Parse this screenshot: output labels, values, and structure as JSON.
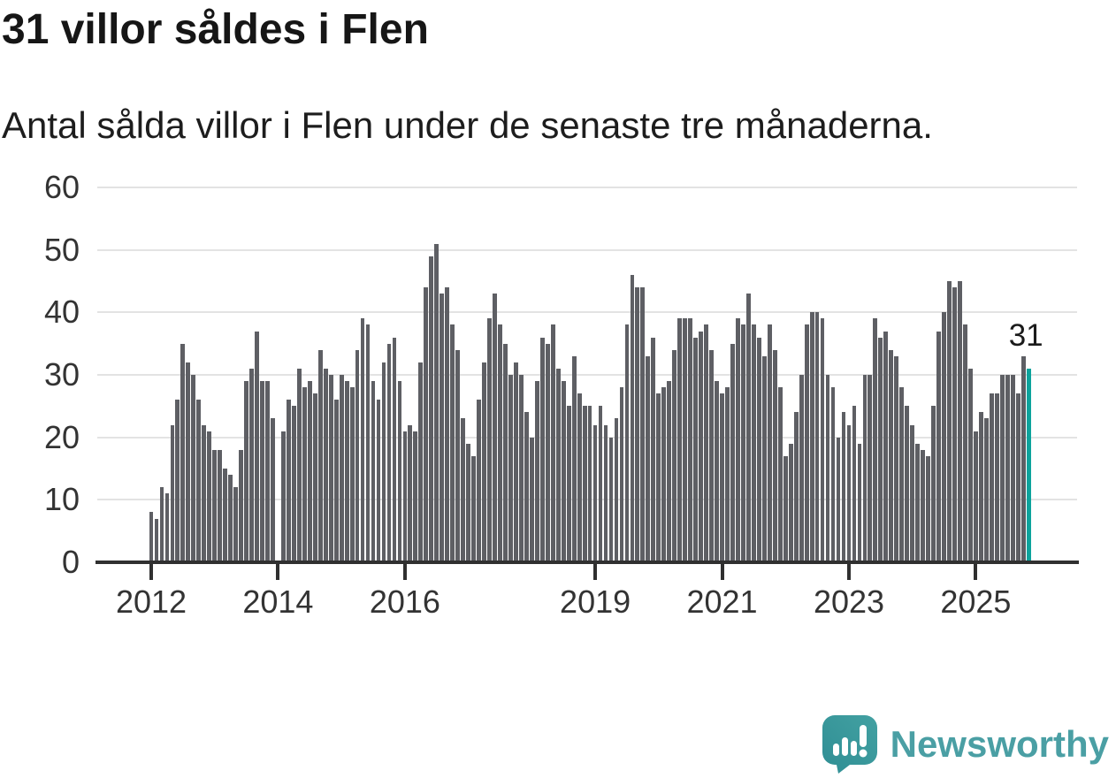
{
  "header": {
    "title": "31 villor såldes i Flen",
    "subtitle": "Antal sålda villor i Flen under de senaste tre månaderna."
  },
  "chart_data": {
    "type": "bar",
    "title": "31 villor såldes i Flen",
    "subtitle": "Antal sålda villor i Flen under de senaste tre månaderna.",
    "x_start_month": "2012-01",
    "x_frequency": "monthly-rolling-3-month-sum",
    "missing_months": [
      "2014-01"
    ],
    "values": [
      8,
      7,
      12,
      11,
      22,
      26,
      35,
      32,
      30,
      26,
      22,
      21,
      18,
      18,
      15,
      14,
      12,
      18,
      29,
      31,
      37,
      29,
      29,
      23,
      0,
      21,
      26,
      25,
      31,
      28,
      29,
      27,
      34,
      31,
      30,
      26,
      30,
      29,
      28,
      34,
      39,
      38,
      29,
      26,
      32,
      35,
      36,
      29,
      21,
      22,
      21,
      32,
      44,
      49,
      51,
      43,
      44,
      38,
      34,
      23,
      19,
      17,
      26,
      32,
      39,
      43,
      38,
      35,
      30,
      32,
      30,
      24,
      20,
      29,
      36,
      35,
      38,
      31,
      29,
      25,
      33,
      27,
      25,
      25,
      22,
      25,
      22,
      20,
      23,
      28,
      38,
      46,
      44,
      44,
      33,
      36,
      27,
      28,
      29,
      34,
      39,
      39,
      39,
      36,
      37,
      38,
      34,
      29,
      27,
      28,
      35,
      39,
      38,
      43,
      38,
      36,
      33,
      38,
      34,
      28,
      17,
      19,
      24,
      30,
      38,
      40,
      40,
      39,
      30,
      28,
      20,
      24,
      22,
      25,
      19,
      30,
      30,
      39,
      36,
      37,
      34,
      33,
      28,
      25,
      22,
      19,
      18,
      17,
      25,
      37,
      40,
      45,
      44,
      45,
      38,
      31,
      21,
      24,
      23,
      27,
      27,
      30,
      30,
      30,
      27,
      33,
      31
    ],
    "ylim": [
      0,
      60
    ],
    "y_ticks": [
      0,
      10,
      20,
      30,
      40,
      50,
      60
    ],
    "x_ticks": [
      {
        "label": "2012",
        "month_index": 0
      },
      {
        "label": "2014",
        "month_index": 24
      },
      {
        "label": "2016",
        "month_index": 48
      },
      {
        "label": "2019",
        "month_index": 84
      },
      {
        "label": "2021",
        "month_index": 108
      },
      {
        "label": "2023",
        "month_index": 132
      },
      {
        "label": "2025",
        "month_index": 156
      }
    ],
    "grid": "horizontal",
    "legend": "none",
    "highlight_last_bar": true,
    "annotation": {
      "text": "31",
      "month_index": 166
    },
    "colors": {
      "bar": "#5e5f64",
      "highlight": "#0ca39c",
      "axis": "#303030",
      "grid": "#e3e3e3",
      "tick_label": "#333333",
      "annotation": "#1b1b1b"
    }
  },
  "footer": {
    "logo_text": "Newsworthy",
    "logo_colors": {
      "bubble": "#43a1a2",
      "bubble_dark": "#2f8e94",
      "glyph": "#ffffff",
      "text": "#4a9fa4"
    }
  }
}
